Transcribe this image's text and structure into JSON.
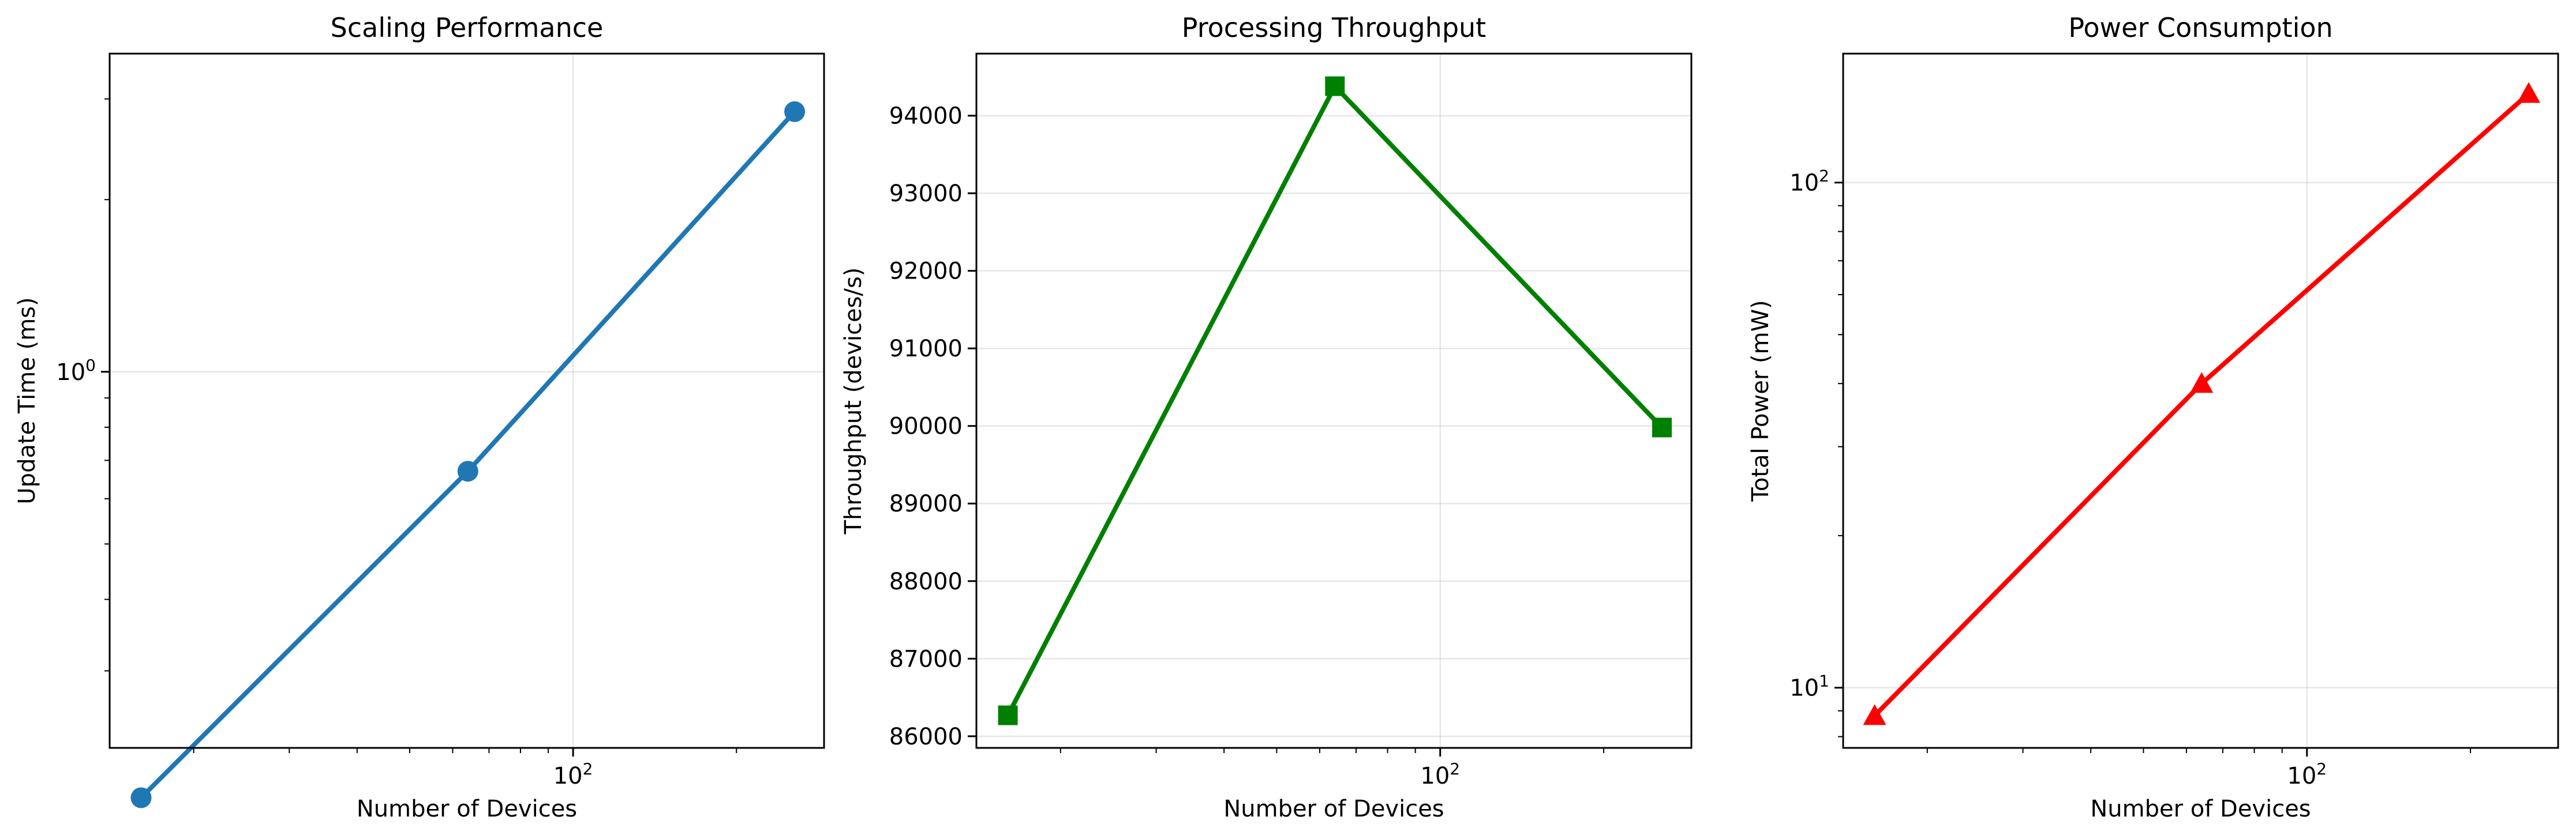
{
  "chart_data": [
    {
      "type": "line",
      "title": "Scaling Performance",
      "xlabel": "Number of Devices",
      "ylabel": "Update Time (ms)",
      "xscale": "log",
      "yscale": "log",
      "xlim": [
        14,
        290
      ],
      "ylim": [
        0.22,
        3.6
      ],
      "grid": true,
      "x": [
        16,
        64,
        256
      ],
      "series": [
        {
          "values": [
            0.18,
            0.67,
            2.85
          ],
          "color": "#1f77b4",
          "marker": "circle"
        }
      ],
      "xticks": [
        {
          "value": 100,
          "base": "10",
          "exp": "2"
        }
      ],
      "yticks": [
        {
          "value": 1,
          "base": "10",
          "exp": "0"
        }
      ]
    },
    {
      "type": "line",
      "title": "Processing Throughput",
      "xlabel": "Number of Devices",
      "ylabel": "Throughput (devices/s)",
      "xscale": "log",
      "yscale": "linear",
      "xlim": [
        14,
        290
      ],
      "ylim": [
        85850,
        94800
      ],
      "grid": true,
      "x": [
        16,
        64,
        256
      ],
      "series": [
        {
          "values": [
            86270,
            94380,
            89980
          ],
          "color": "#008000",
          "marker": "square"
        }
      ],
      "xticks": [
        {
          "value": 100,
          "base": "10",
          "exp": "2"
        }
      ],
      "yticks": [
        {
          "value": 86000,
          "label": "86000"
        },
        {
          "value": 87000,
          "label": "87000"
        },
        {
          "value": 88000,
          "label": "88000"
        },
        {
          "value": 89000,
          "label": "89000"
        },
        {
          "value": 90000,
          "label": "90000"
        },
        {
          "value": 91000,
          "label": "91000"
        },
        {
          "value": 92000,
          "label": "92000"
        },
        {
          "value": 93000,
          "label": "93000"
        },
        {
          "value": 94000,
          "label": "94000"
        }
      ]
    },
    {
      "type": "line",
      "title": "Power Consumption",
      "xlabel": "Number of Devices",
      "ylabel": "Total Power (mW)",
      "xscale": "log",
      "yscale": "log",
      "xlim": [
        14,
        290
      ],
      "ylim": [
        7.6,
        180
      ],
      "grid": true,
      "x": [
        16,
        64,
        256
      ],
      "series": [
        {
          "values": [
            8.8,
            40,
            150
          ],
          "color": "#ff0000",
          "marker": "triangle"
        }
      ],
      "xticks": [
        {
          "value": 100,
          "base": "10",
          "exp": "2"
        }
      ],
      "yticks": [
        {
          "value": 10,
          "base": "10",
          "exp": "1"
        },
        {
          "value": 100,
          "base": "10",
          "exp": "2"
        }
      ]
    }
  ]
}
